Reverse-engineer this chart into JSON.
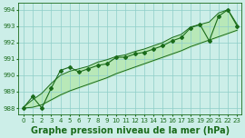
{
  "title": "Graphe pression niveau de la mer (hPa)",
  "x_labels": [
    "0",
    "1",
    "2",
    "3",
    "4",
    "5",
    "6",
    "7",
    "8",
    "9",
    "10",
    "11",
    "12",
    "13",
    "14",
    "15",
    "16",
    "17",
    "18",
    "19",
    "20",
    "21",
    "22",
    "23"
  ],
  "hours": [
    0,
    1,
    2,
    3,
    4,
    5,
    6,
    7,
    8,
    9,
    10,
    11,
    12,
    13,
    14,
    15,
    16,
    17,
    18,
    19,
    20,
    21,
    22,
    23
  ],
  "pressure": [
    988.0,
    988.7,
    988.0,
    989.2,
    990.3,
    990.5,
    990.2,
    990.4,
    990.6,
    990.7,
    991.1,
    991.1,
    991.3,
    991.4,
    991.6,
    991.8,
    992.1,
    992.3,
    992.9,
    993.1,
    992.1,
    993.6,
    994.0,
    993.0
  ],
  "trend_low": [
    988.0,
    988.05,
    988.2,
    988.5,
    988.8,
    989.05,
    989.25,
    989.45,
    989.65,
    989.85,
    990.1,
    990.3,
    990.5,
    990.7,
    990.9,
    991.1,
    991.3,
    991.5,
    991.75,
    991.95,
    992.15,
    992.35,
    992.55,
    992.75
  ],
  "trend_high": [
    988.05,
    988.5,
    988.9,
    989.5,
    990.0,
    990.25,
    990.4,
    990.55,
    990.8,
    990.95,
    991.15,
    991.25,
    991.45,
    991.6,
    991.8,
    992.0,
    992.3,
    992.5,
    992.95,
    993.1,
    993.25,
    993.8,
    994.0,
    993.1
  ],
  "ylim": [
    987.6,
    994.4
  ],
  "yticks": [
    988,
    989,
    990,
    991,
    992,
    993,
    994
  ],
  "line_color": "#1a6b1a",
  "fill_color": "#b8e8b8",
  "bg_color": "#cceee8",
  "grid_color": "#8ecec8",
  "title_fontsize": 7.0,
  "tick_fontsize": 5.0
}
